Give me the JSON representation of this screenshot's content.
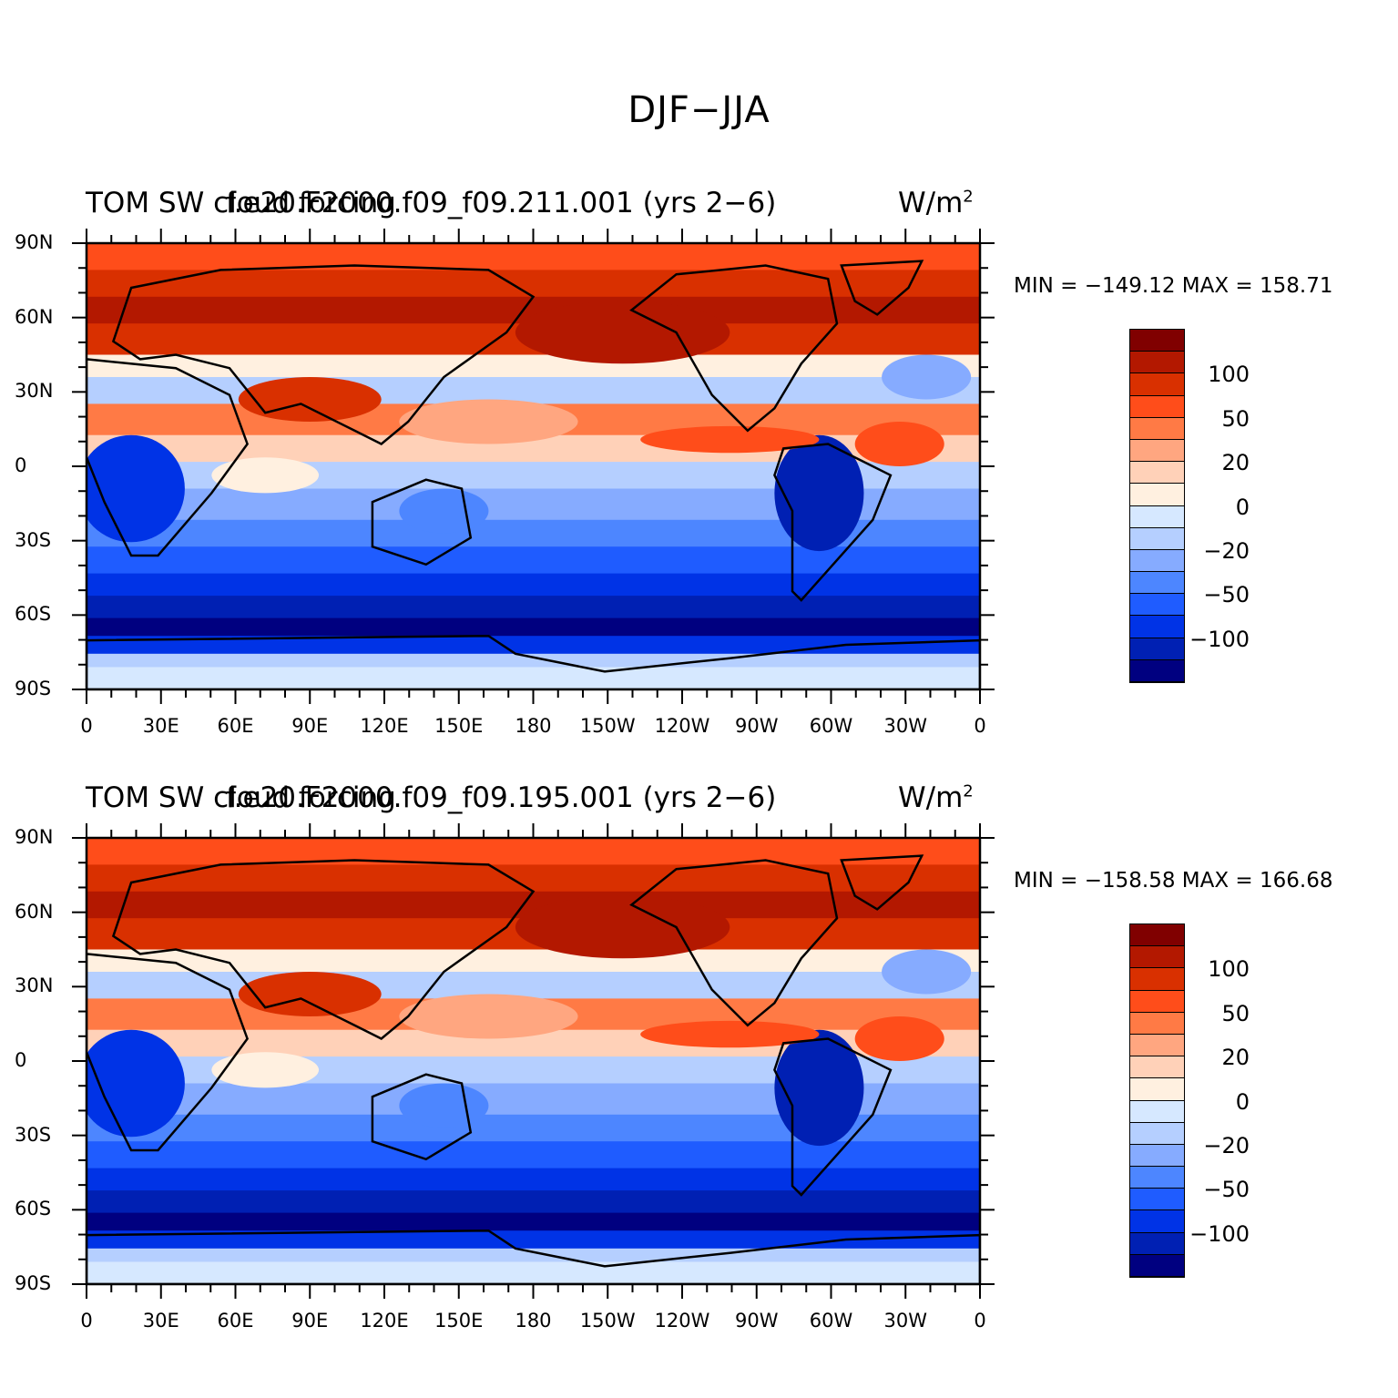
{
  "title": "DJF−JJA",
  "panels": [
    {
      "left_string": "TOM SW cloud forcing",
      "center_string": "f.e20.F2000.f09_f09.211.001 (yrs 2−6)",
      "units_base": "W/m",
      "units_exp": "2",
      "minmax": "MIN = −149.12  MAX = 158.71"
    },
    {
      "left_string": "TOM SW cloud forcing",
      "center_string": "f.e20.F2000.f09_f09.195.001 (yrs 2−6)",
      "units_base": "W/m",
      "units_exp": "2",
      "minmax": "MIN = −158.58  MAX = 166.68"
    }
  ],
  "y_tick_labels": [
    "90N",
    "60N",
    "30N",
    "0",
    "30S",
    "60S",
    "90S"
  ],
  "x_tick_labels": [
    "0",
    "30E",
    "60E",
    "90E",
    "120E",
    "150E",
    "180",
    "150W",
    "120W",
    "90W",
    "60W",
    "30W",
    "0"
  ],
  "colorbar": {
    "colors": [
      "#800000",
      "#b31800",
      "#d93000",
      "#ff4d1a",
      "#ff7a45",
      "#ffa680",
      "#ffd1b8",
      "#fff0e0",
      "#d6e8ff",
      "#b5cfff",
      "#86abff",
      "#4d86ff",
      "#1f5cff",
      "#0033e6",
      "#0020b3",
      "#000080"
    ],
    "labels": [
      "100",
      "50",
      "20",
      "0",
      "−20",
      "−50",
      "−100"
    ]
  },
  "colors": {
    "land_outline": "#000000",
    "background": "#ffffff"
  }
}
